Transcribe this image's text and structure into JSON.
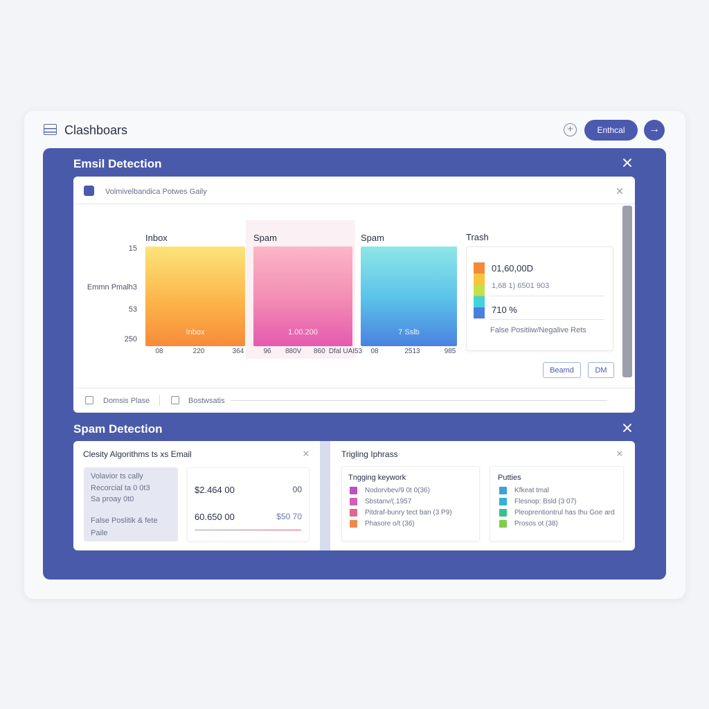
{
  "header": {
    "title": "Clashboars",
    "button": "Enthcal"
  },
  "email_panel": {
    "title": "Emsil Detection",
    "toolbar": "Volmivelbandica Potwes Gaily",
    "y_labels": [
      "15",
      "Emmn Pmalh3",
      "53",
      "250"
    ],
    "columns": [
      {
        "title": "Inbox",
        "bar_label": "Inbox",
        "x_labels": [
          "08",
          "220",
          "364"
        ]
      },
      {
        "title": "Spam",
        "bar_label": "1.00.200",
        "x_labels": [
          "96",
          "880V",
          "860",
          "Dfal UAI53"
        ]
      },
      {
        "title": "Spam",
        "bar_label": "7 Sslb",
        "x_labels": [
          "08",
          "2513",
          "985"
        ]
      }
    ],
    "trash": {
      "title": "Trash",
      "lines": [
        "01,60,00D",
        "1,68 1) 6501 903",
        "710 %",
        "False Positiiw/Negalive Rets"
      ]
    },
    "buttons": [
      "Beamd",
      "DM"
    ],
    "footer": [
      "Domsis Plase",
      "Bostwsatis"
    ]
  },
  "spam_panel": {
    "title": "Spam Detection",
    "classify": {
      "title": "Clesity Algorithms ts xs Email",
      "notes": [
        "Volavior ts cally",
        "Recorcial ta 0 0t3",
        "Sa proay 0t0",
        "False Poslitik & fete",
        "Paile"
      ],
      "rows": [
        [
          "$2.464 00",
          "00"
        ],
        [
          "60.650 00",
          "$50 70"
        ]
      ]
    },
    "phrases": {
      "title": "Trigling Iphrass",
      "keywords": {
        "title": "Tngging keywork",
        "items": [
          "Nodorvbev/9 0t 0(36)",
          "Sbstanv/(.1957",
          "Pitdraf-bunry tect ban (3 P9)",
          "Phasore o/t (36)"
        ]
      },
      "patterns": {
        "title": "Putties",
        "items": [
          "Kfkeat tmal",
          "Flesnop: Bsld (3 07)",
          "Pleoprentiontrul has thu Goe ard",
          "Prosos ot (38)"
        ]
      }
    }
  }
}
